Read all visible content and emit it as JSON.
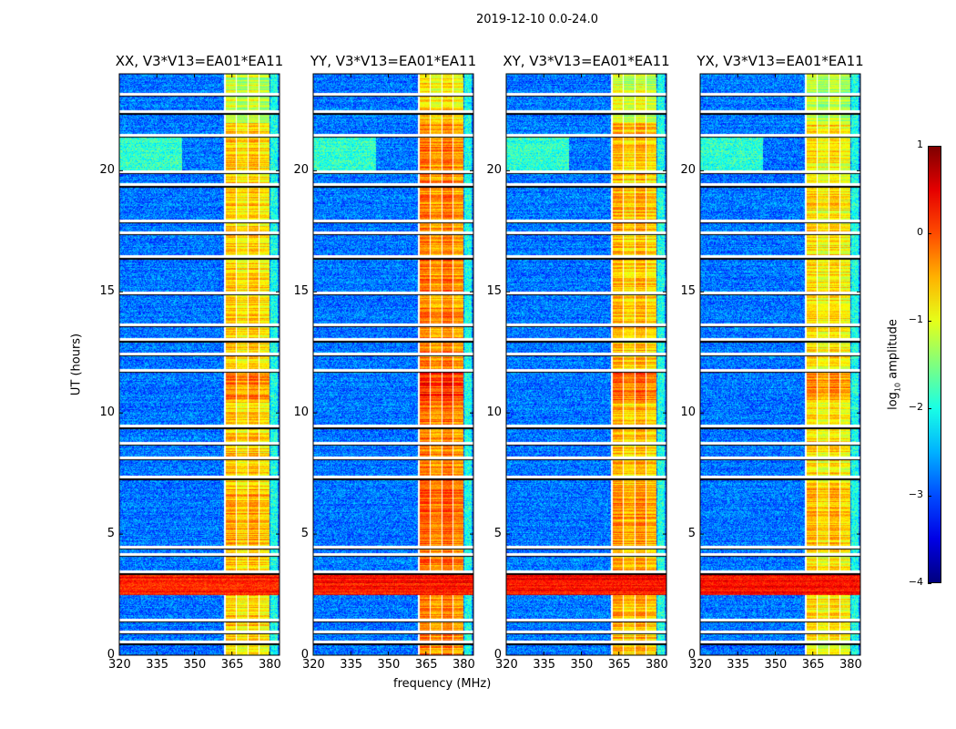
{
  "suptitle": "2019-12-10 0.0-24.0",
  "chart_data": {
    "type": "heatmap",
    "title": "2019-12-10 0.0-24.0",
    "xlabel": "frequency (MHz)",
    "ylabel": "UT (hours)",
    "xlim": [
      320,
      384
    ],
    "ylim": [
      0,
      24
    ],
    "xticks": [
      320,
      335,
      350,
      365,
      380
    ],
    "yticks": [
      0,
      5,
      10,
      15,
      20
    ],
    "panels": [
      {
        "title": "XX, V3*V13=EA01*EA11",
        "band_level": -0.7
      },
      {
        "title": "YY, V3*V13=EA01*EA11",
        "band_level": -0.3
      },
      {
        "title": "XY, V3*V13=EA01*EA11",
        "band_level": -0.6
      },
      {
        "title": "YX, V3*V13=EA01*EA11",
        "band_level": -0.8
      }
    ],
    "background_level": -2.8,
    "bright_band_mhz": [
      362,
      380
    ],
    "strong_rfi_ut": [
      2.5,
      3.4
    ],
    "flagged_ut": [
      0.6,
      1.0,
      1.5,
      3.5,
      4.2,
      4.5,
      7.4,
      8.2,
      8.8,
      9.5,
      11.8,
      12.5,
      13.1,
      13.7,
      15.0,
      16.5,
      17.5,
      18.0,
      19.5,
      20.0,
      21.5,
      22.5,
      23.2
    ],
    "colorbar": {
      "label_main": "log",
      "label_sub": "10",
      "label_rest": " amplitude",
      "range": [
        -4,
        1
      ],
      "ticks": [
        1,
        0,
        -1,
        -2,
        -3,
        -4
      ],
      "tick_labels": [
        "1",
        "0",
        "−1",
        "−2",
        "−3",
        "−4"
      ],
      "colormap": "jet"
    }
  }
}
